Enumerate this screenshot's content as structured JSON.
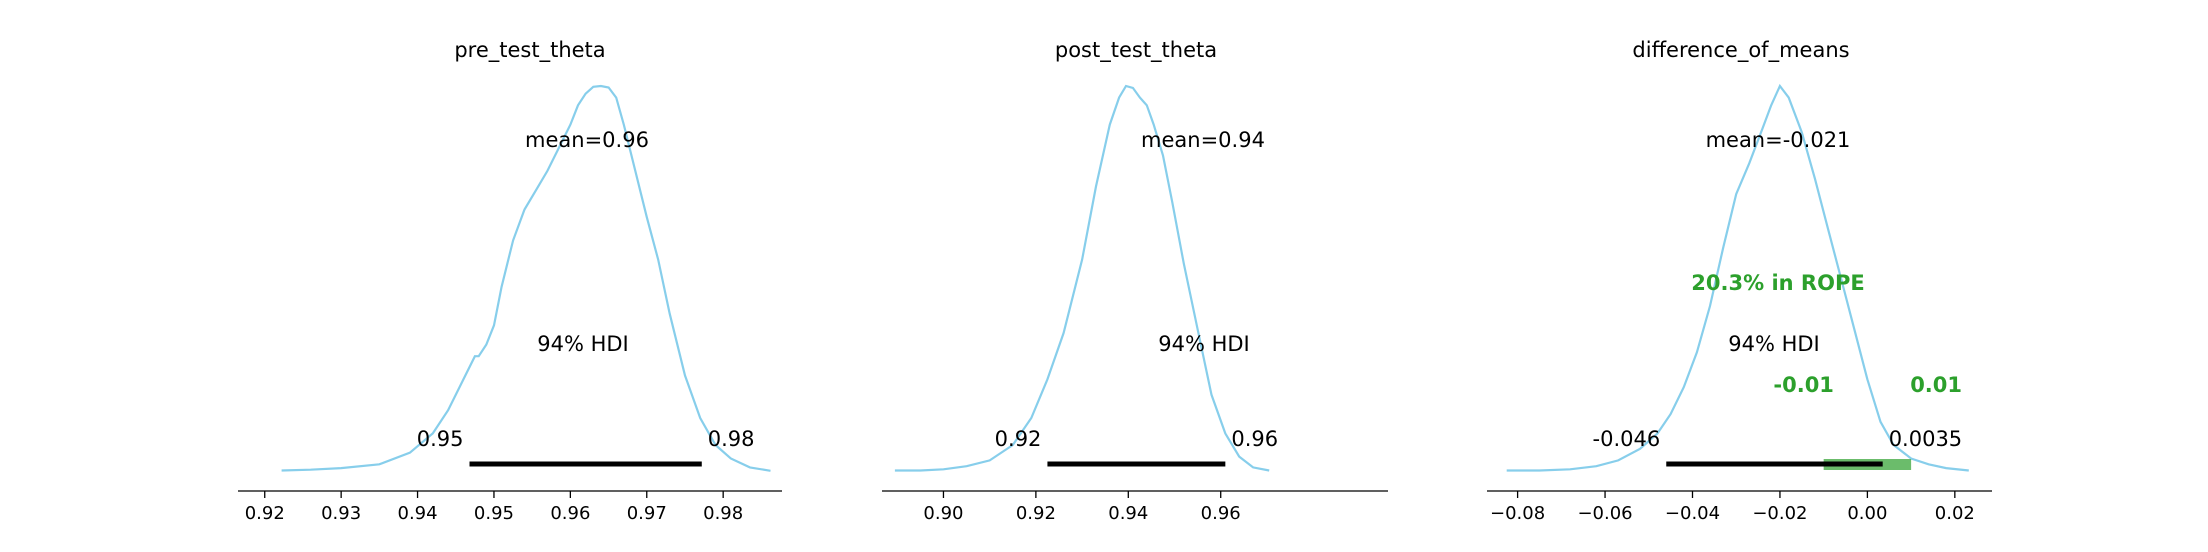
{
  "chart_data": [
    {
      "type": "area",
      "title": "pre_test_theta",
      "mean_label": "mean=0.96",
      "hdi_label": "94% HDI",
      "hdi": [
        0.9468,
        0.9772
      ],
      "hdi_low_label": "0.95",
      "hdi_high_label": "0.98",
      "xlim": [
        0.9165,
        0.9877
      ],
      "xticks": [
        0.92,
        0.93,
        0.94,
        0.95,
        0.96,
        0.97,
        0.98
      ],
      "xtick_labels": [
        "0.92",
        "0.93",
        "0.94",
        "0.95",
        "0.96",
        "0.97",
        "0.98"
      ],
      "kde_x": [
        0.9222,
        0.926,
        0.93,
        0.935,
        0.939,
        0.942,
        0.944,
        0.946,
        0.9475,
        0.948,
        0.949,
        0.95,
        0.951,
        0.9525,
        0.954,
        0.9555,
        0.957,
        0.9585,
        0.96,
        0.961,
        0.962,
        0.963,
        0.964,
        0.965,
        0.966,
        0.967,
        0.9685,
        0.97,
        0.9715,
        0.973,
        0.975,
        0.977,
        0.979,
        0.981,
        0.9835,
        0.9862
      ],
      "kde_y": [
        0.004,
        0.006,
        0.01,
        0.02,
        0.05,
        0.1,
        0.16,
        0.24,
        0.3,
        0.3,
        0.33,
        0.38,
        0.48,
        0.6,
        0.68,
        0.73,
        0.78,
        0.84,
        0.9,
        0.95,
        0.98,
        0.998,
        1.0,
        0.996,
        0.97,
        0.9,
        0.78,
        0.66,
        0.55,
        0.41,
        0.25,
        0.14,
        0.07,
        0.035,
        0.012,
        0.003
      ]
    },
    {
      "type": "area",
      "title": "post_test_theta",
      "mean_label": "mean=0.94",
      "hdi_label": "94% HDI",
      "hdi": [
        0.9225,
        0.961
      ],
      "hdi_low_label": "0.92",
      "hdi_high_label": "0.96",
      "xlim": [
        0.8867,
        0.9962
      ],
      "xticks": [
        0.9,
        0.92,
        0.94,
        0.96
      ],
      "xtick_labels": [
        "0.90",
        "0.92",
        "0.94",
        "0.96"
      ],
      "kde_x": [
        0.8895,
        0.895,
        0.9,
        0.905,
        0.91,
        0.915,
        0.919,
        0.9225,
        0.926,
        0.93,
        0.933,
        0.936,
        0.938,
        0.9395,
        0.941,
        0.9425,
        0.944,
        0.9455,
        0.9475,
        0.9495,
        0.952,
        0.955,
        0.958,
        0.961,
        0.964,
        0.967,
        0.9705
      ],
      "kde_y": [
        0.004,
        0.004,
        0.007,
        0.015,
        0.03,
        0.07,
        0.14,
        0.24,
        0.36,
        0.55,
        0.74,
        0.9,
        0.97,
        1.0,
        0.995,
        0.97,
        0.95,
        0.9,
        0.82,
        0.7,
        0.54,
        0.37,
        0.2,
        0.1,
        0.04,
        0.012,
        0.004
      ]
    },
    {
      "type": "area",
      "title": "difference_of_means",
      "mean_label": "mean=-0.021",
      "hdi_label": "94% HDI",
      "hdi": [
        -0.046,
        0.0035
      ],
      "hdi_low_label": "-0.046",
      "hdi_high_label": "0.0035",
      "rope": [
        -0.01,
        0.01
      ],
      "rope_label": "20.3% in ROPE",
      "rope_low_label": "-0.01",
      "rope_high_label": "0.01",
      "xlim": [
        -0.087,
        0.0285
      ],
      "xticks": [
        -0.08,
        -0.06,
        -0.04,
        -0.02,
        0.0,
        0.02
      ],
      "xtick_labels": [
        "−0.08",
        "−0.06",
        "−0.04",
        "−0.02",
        "0.00",
        "0.02"
      ],
      "kde_x": [
        -0.0825,
        -0.075,
        -0.068,
        -0.062,
        -0.057,
        -0.052,
        -0.048,
        -0.045,
        -0.042,
        -0.039,
        -0.036,
        -0.033,
        -0.03,
        -0.027,
        -0.024,
        -0.022,
        -0.02,
        -0.018,
        -0.015,
        -0.012,
        -0.009,
        -0.006,
        -0.003,
        0.0,
        0.003,
        0.006,
        0.01,
        0.014,
        0.018,
        0.0232
      ],
      "kde_y": [
        0.004,
        0.004,
        0.007,
        0.015,
        0.03,
        0.06,
        0.1,
        0.15,
        0.22,
        0.31,
        0.43,
        0.58,
        0.72,
        0.8,
        0.89,
        0.95,
        1.0,
        0.97,
        0.88,
        0.76,
        0.63,
        0.5,
        0.37,
        0.24,
        0.13,
        0.07,
        0.035,
        0.02,
        0.01,
        0.004
      ]
    }
  ]
}
